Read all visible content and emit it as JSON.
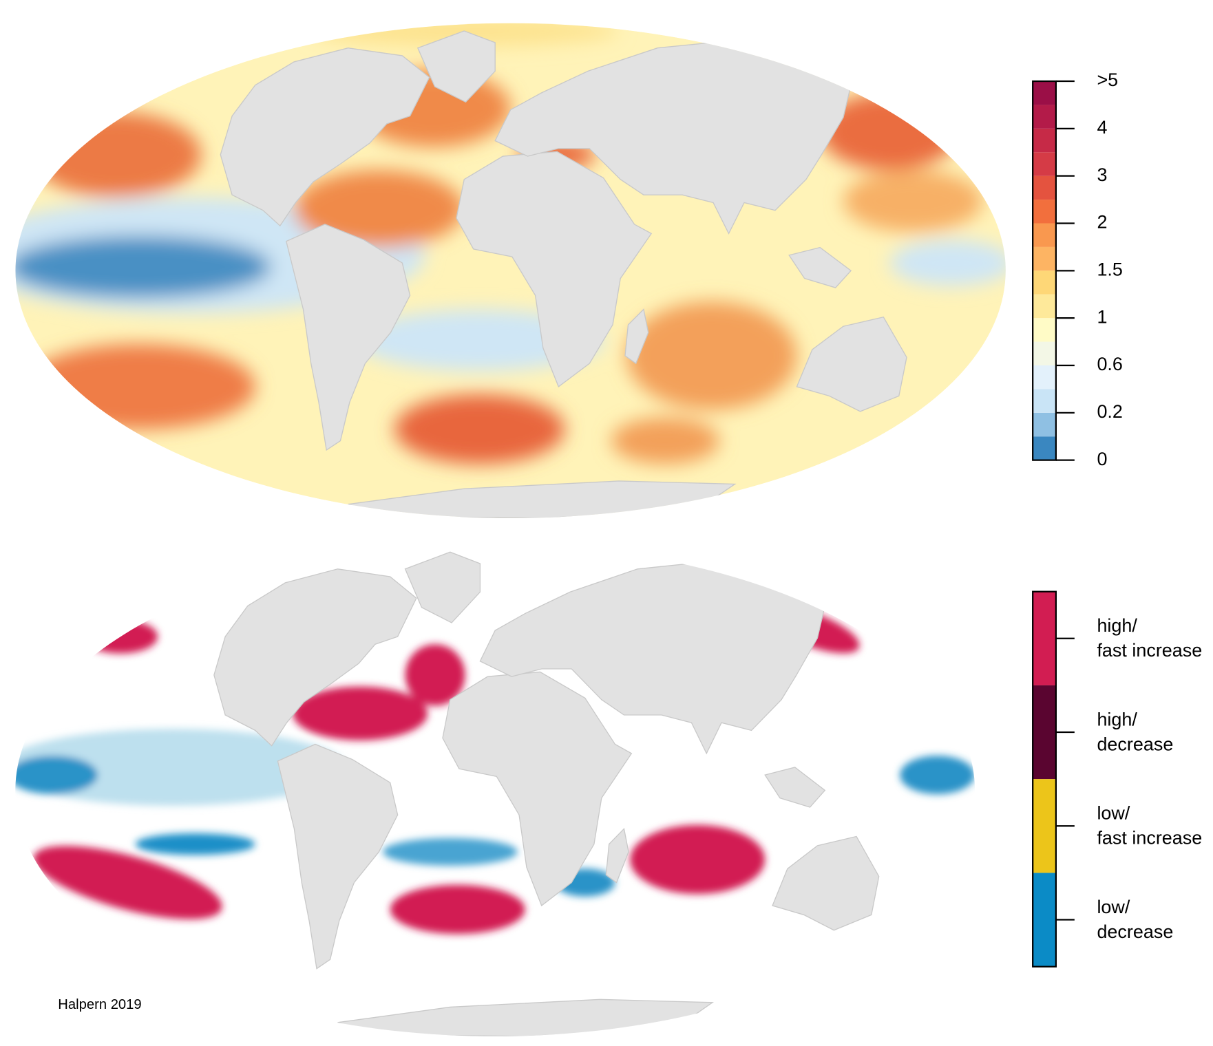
{
  "maps": [
    {
      "legend": {
        "colors": [
          "#3a87c0",
          "#8fc0e3",
          "#c9e4f6",
          "#e3f1fb",
          "#f3f7e6",
          "#fffbc6",
          "#fee99a",
          "#fed777",
          "#fdb463",
          "#f9984f",
          "#f26f3d",
          "#e4533f",
          "#d53b46",
          "#c62a47",
          "#b31b49",
          "#9b0f47"
        ],
        "ticks": [
          0,
          0.2,
          0.6,
          1,
          1.5,
          2,
          3,
          4,
          {
            "value": 5,
            "label": ">5"
          }
        ]
      }
    },
    {
      "legend": {
        "categories": [
          {
            "lines": [
              "high/",
              "fast increase"
            ],
            "color": "#d21d52"
          },
          {
            "lines": [
              "high/",
              "decrease"
            ],
            "color": "#5a0530"
          },
          {
            "lines": [
              "low/",
              "fast increase"
            ],
            "color": "#ecc51a"
          },
          {
            "lines": [
              "low/",
              "decrease"
            ],
            "color": "#0b8bc6"
          }
        ]
      }
    }
  ],
  "credit": "Halpern 2019"
}
